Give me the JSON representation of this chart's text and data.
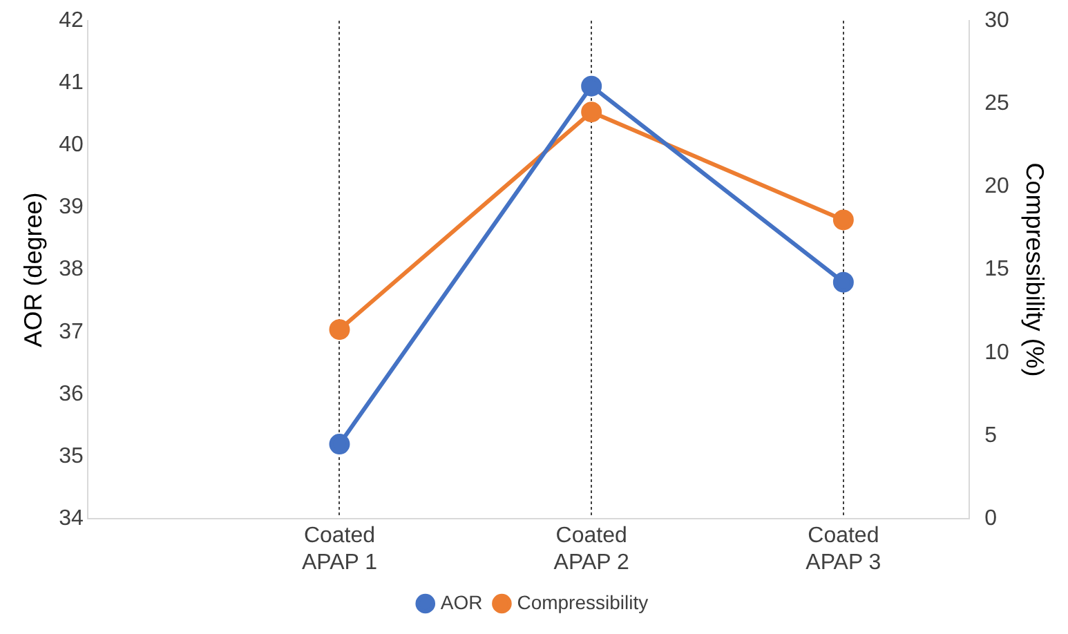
{
  "chart_data": {
    "type": "line",
    "categories": [
      null,
      "Coated\nAPAP 1",
      "Coated\nAPAP 2",
      "Coated\nAPAP 3"
    ],
    "ylabel": "AOR (degree)",
    "y2label": "Compressibility (%)",
    "ylim": [
      34,
      42
    ],
    "yticks": [
      34,
      35,
      36,
      37,
      38,
      39,
      40,
      41,
      42
    ],
    "y2lim": [
      0,
      30
    ],
    "y2ticks": [
      0,
      5,
      10,
      15,
      20,
      25,
      30
    ],
    "series": [
      {
        "name": "AOR",
        "color": "#4472c4",
        "values": [
          null,
          35.2,
          40.95,
          37.8
        ]
      },
      {
        "name": "Compressibility",
        "color": "#ed7d31",
        "axis": "y2",
        "values": [
          null,
          11.4,
          24.5,
          18.0
        ]
      }
    ],
    "grid": "x",
    "legend": "bottom",
    "marker": "circle",
    "line_style": "solid"
  }
}
